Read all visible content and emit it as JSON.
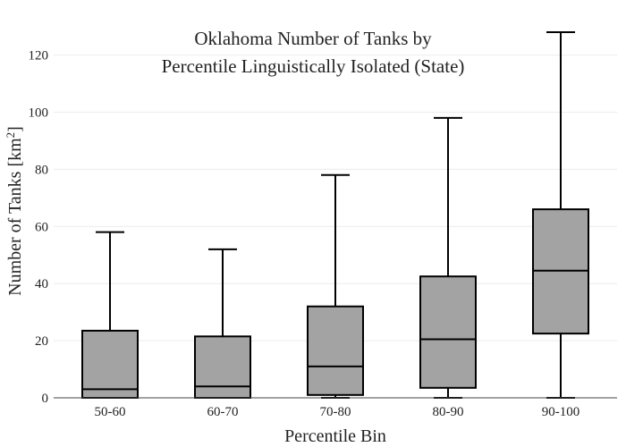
{
  "chart_data": {
    "type": "box",
    "title_lines": [
      "Oklahoma Number of Tanks by",
      "Percentile Linguistically Isolated (State)"
    ],
    "xlabel": "Percentile Bin",
    "ylabel_main": "Number of Tanks  [km",
    "ylabel_sup": "2",
    "ylabel_end": "]",
    "ylim": [
      0,
      128
    ],
    "yticks": [
      0,
      20,
      40,
      60,
      80,
      100,
      120
    ],
    "grid": true,
    "categories": [
      "50-60",
      "60-70",
      "70-80",
      "80-90",
      "90-100"
    ],
    "boxes": [
      {
        "min": 0,
        "q1": 0,
        "median": 3,
        "q3": 23.5,
        "max": 58
      },
      {
        "min": 0,
        "q1": 0,
        "median": 4,
        "q3": 21.5,
        "max": 52
      },
      {
        "min": 0,
        "q1": 1,
        "median": 11,
        "q3": 32,
        "max": 78
      },
      {
        "min": 0,
        "q1": 3.5,
        "median": 20.5,
        "q3": 42.5,
        "max": 98
      },
      {
        "min": 0,
        "q1": 22.5,
        "median": 44.5,
        "q3": 66,
        "max": 128
      }
    ],
    "box_fill": "#a3a3a3",
    "line_color": "#000000"
  }
}
